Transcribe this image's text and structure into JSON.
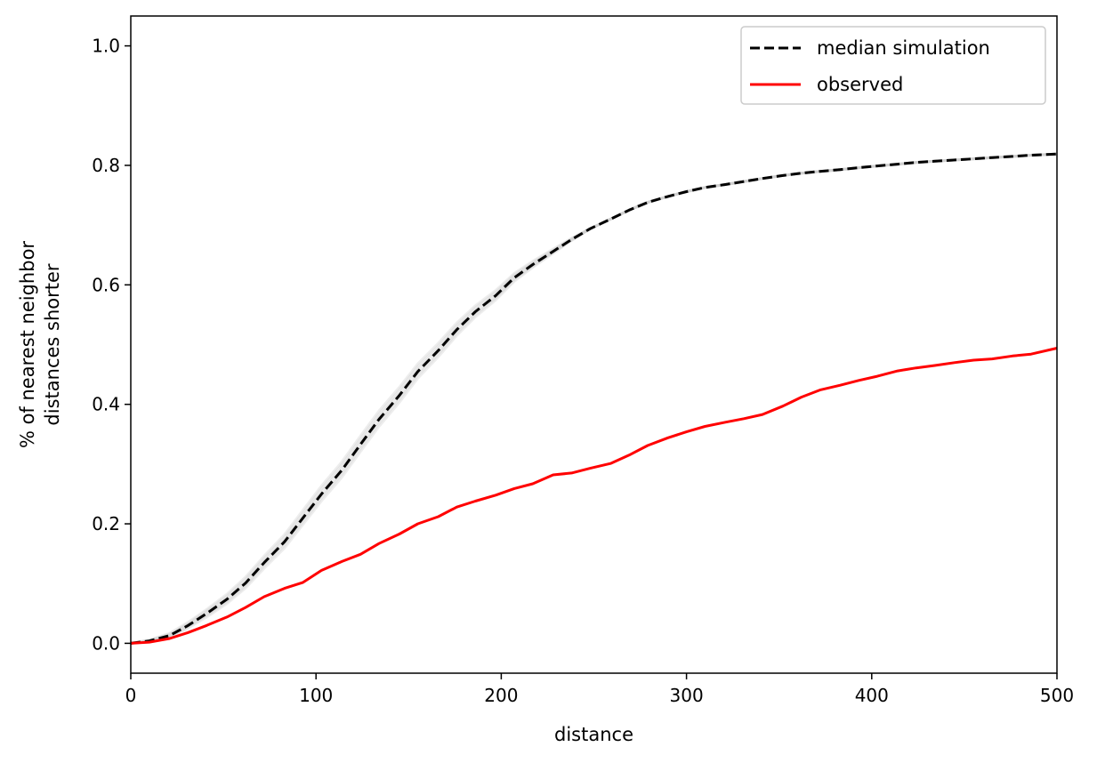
{
  "chart_data": {
    "type": "line",
    "xlabel": "distance",
    "ylabel_lines": [
      "% of nearest neighbor",
      "distances shorter"
    ],
    "xlim": [
      0,
      500
    ],
    "ylim": [
      -0.05,
      1.05
    ],
    "xticks": [
      "0",
      "100",
      "200",
      "300",
      "400",
      "500"
    ],
    "xtick_values": [
      0,
      100,
      200,
      300,
      400,
      500
    ],
    "yticks": [
      "0.0",
      "0.2",
      "0.4",
      "0.6",
      "0.8",
      "1.0"
    ],
    "ytick_values": [
      0.0,
      0.2,
      0.4,
      0.6,
      0.8,
      1.0
    ],
    "grid": false,
    "legend_position": "top-right",
    "x": [
      0,
      10,
      21,
      31,
      41,
      52,
      62,
      72,
      83,
      93,
      103,
      114,
      124,
      134,
      145,
      155,
      166,
      176,
      186,
      197,
      207,
      217,
      228,
      238,
      248,
      259,
      269,
      279,
      290,
      300,
      310,
      321,
      331,
      341,
      352,
      362,
      372,
      383,
      393,
      403,
      414,
      424,
      434,
      445,
      455,
      465,
      476,
      486,
      500
    ],
    "series": [
      {
        "name": "median simulation",
        "style": "dashed",
        "color": "#000000",
        "values": [
          0.0,
          0.004,
          0.013,
          0.03,
          0.05,
          0.074,
          0.101,
          0.135,
          0.17,
          0.21,
          0.25,
          0.29,
          0.333,
          0.375,
          0.415,
          0.455,
          0.49,
          0.525,
          0.555,
          0.582,
          0.612,
          0.634,
          0.656,
          0.676,
          0.694,
          0.71,
          0.725,
          0.738,
          0.748,
          0.756,
          0.763,
          0.768,
          0.773,
          0.778,
          0.783,
          0.787,
          0.79,
          0.793,
          0.796,
          0.799,
          0.802,
          0.805,
          0.807,
          0.809,
          0.811,
          0.813,
          0.815,
          0.817,
          0.819
        ]
      },
      {
        "name": "observed",
        "style": "solid",
        "color": "#ff0000",
        "values": [
          0.0,
          0.002,
          0.008,
          0.018,
          0.03,
          0.044,
          0.06,
          0.078,
          0.092,
          0.102,
          0.122,
          0.137,
          0.149,
          0.167,
          0.183,
          0.2,
          0.212,
          0.228,
          0.238,
          0.248,
          0.259,
          0.267,
          0.282,
          0.285,
          0.293,
          0.301,
          0.315,
          0.331,
          0.344,
          0.354,
          0.363,
          0.37,
          0.376,
          0.383,
          0.397,
          0.412,
          0.424,
          0.432,
          0.44,
          0.447,
          0.456,
          0.461,
          0.465,
          0.47,
          0.474,
          0.476,
          0.481,
          0.484,
          0.494
        ]
      }
    ],
    "simulation_band": {
      "color": "#cccccc",
      "offsets": [
        -0.012,
        -0.007,
        -0.003,
        0.004,
        0.009,
        0.014
      ]
    }
  }
}
